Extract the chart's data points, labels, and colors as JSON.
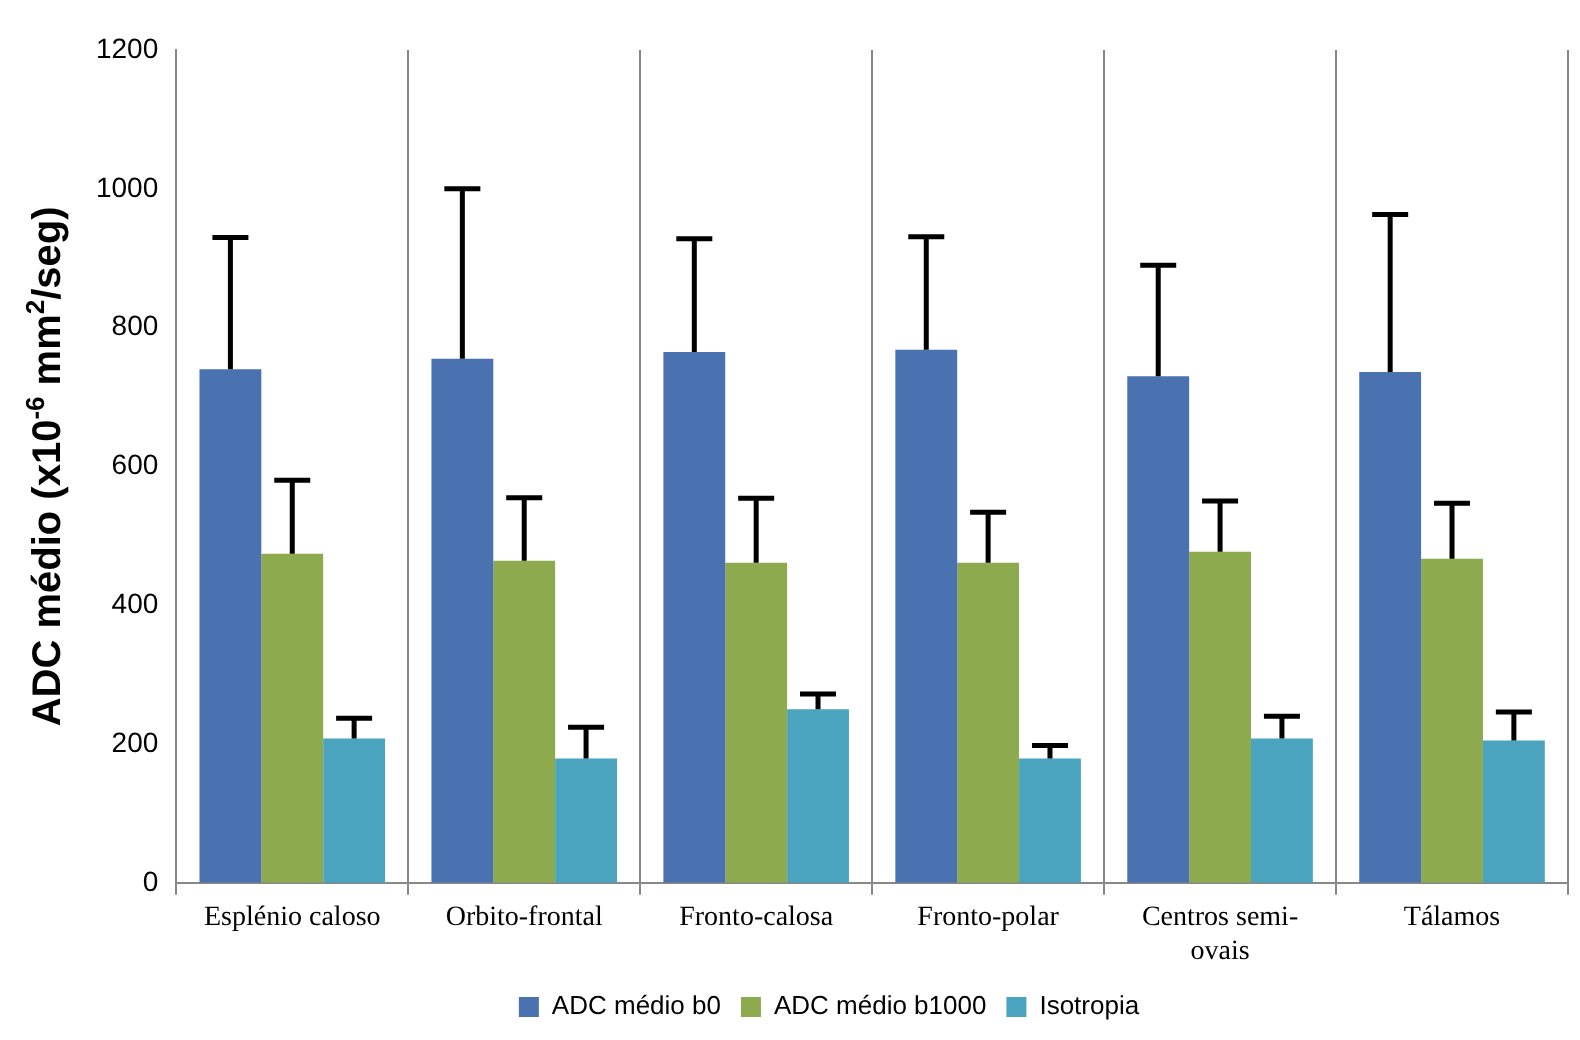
{
  "chart_data": {
    "type": "bar",
    "ylabel": "ADC médio (x10$^{-6}$ mm$^{2}$/seg)",
    "categories": [
      "Esplénio caloso",
      "Orbito-frontal",
      "Fronto-calosa",
      "Fronto-polar",
      "Centros semi-ovais",
      "Tálamos"
    ],
    "series": [
      {
        "name": "ADC médio b0",
        "color": "#4a72b0",
        "values": [
          740,
          755,
          765,
          768,
          730,
          736
        ],
        "errors": [
          [
            740,
            930
          ],
          [
            755,
            1000
          ],
          [
            765,
            928
          ],
          [
            768,
            931
          ],
          [
            730,
            890
          ],
          [
            736,
            963
          ]
        ]
      },
      {
        "name": "ADC médio b1000",
        "color": "#8daa4f",
        "values": [
          474,
          464,
          461,
          461,
          477,
          467
        ],
        "errors": [
          [
            474,
            580
          ],
          [
            464,
            555
          ],
          [
            461,
            554
          ],
          [
            461,
            534
          ],
          [
            477,
            550
          ],
          [
            467,
            547
          ]
        ]
      },
      {
        "name": "Isotropia",
        "color": "#4aa3bf",
        "values": [
          208,
          179,
          250,
          179,
          208,
          205
        ],
        "errors": [
          [
            208,
            237
          ],
          [
            179,
            224
          ],
          [
            250,
            272
          ],
          [
            179,
            198
          ],
          [
            208,
            240
          ],
          [
            205,
            246
          ]
        ]
      }
    ],
    "ylim": [
      0,
      1200
    ],
    "yticks": [
      0,
      200,
      400,
      600,
      800,
      1000,
      1200
    ],
    "grid": "x",
    "legend": "bottom"
  }
}
